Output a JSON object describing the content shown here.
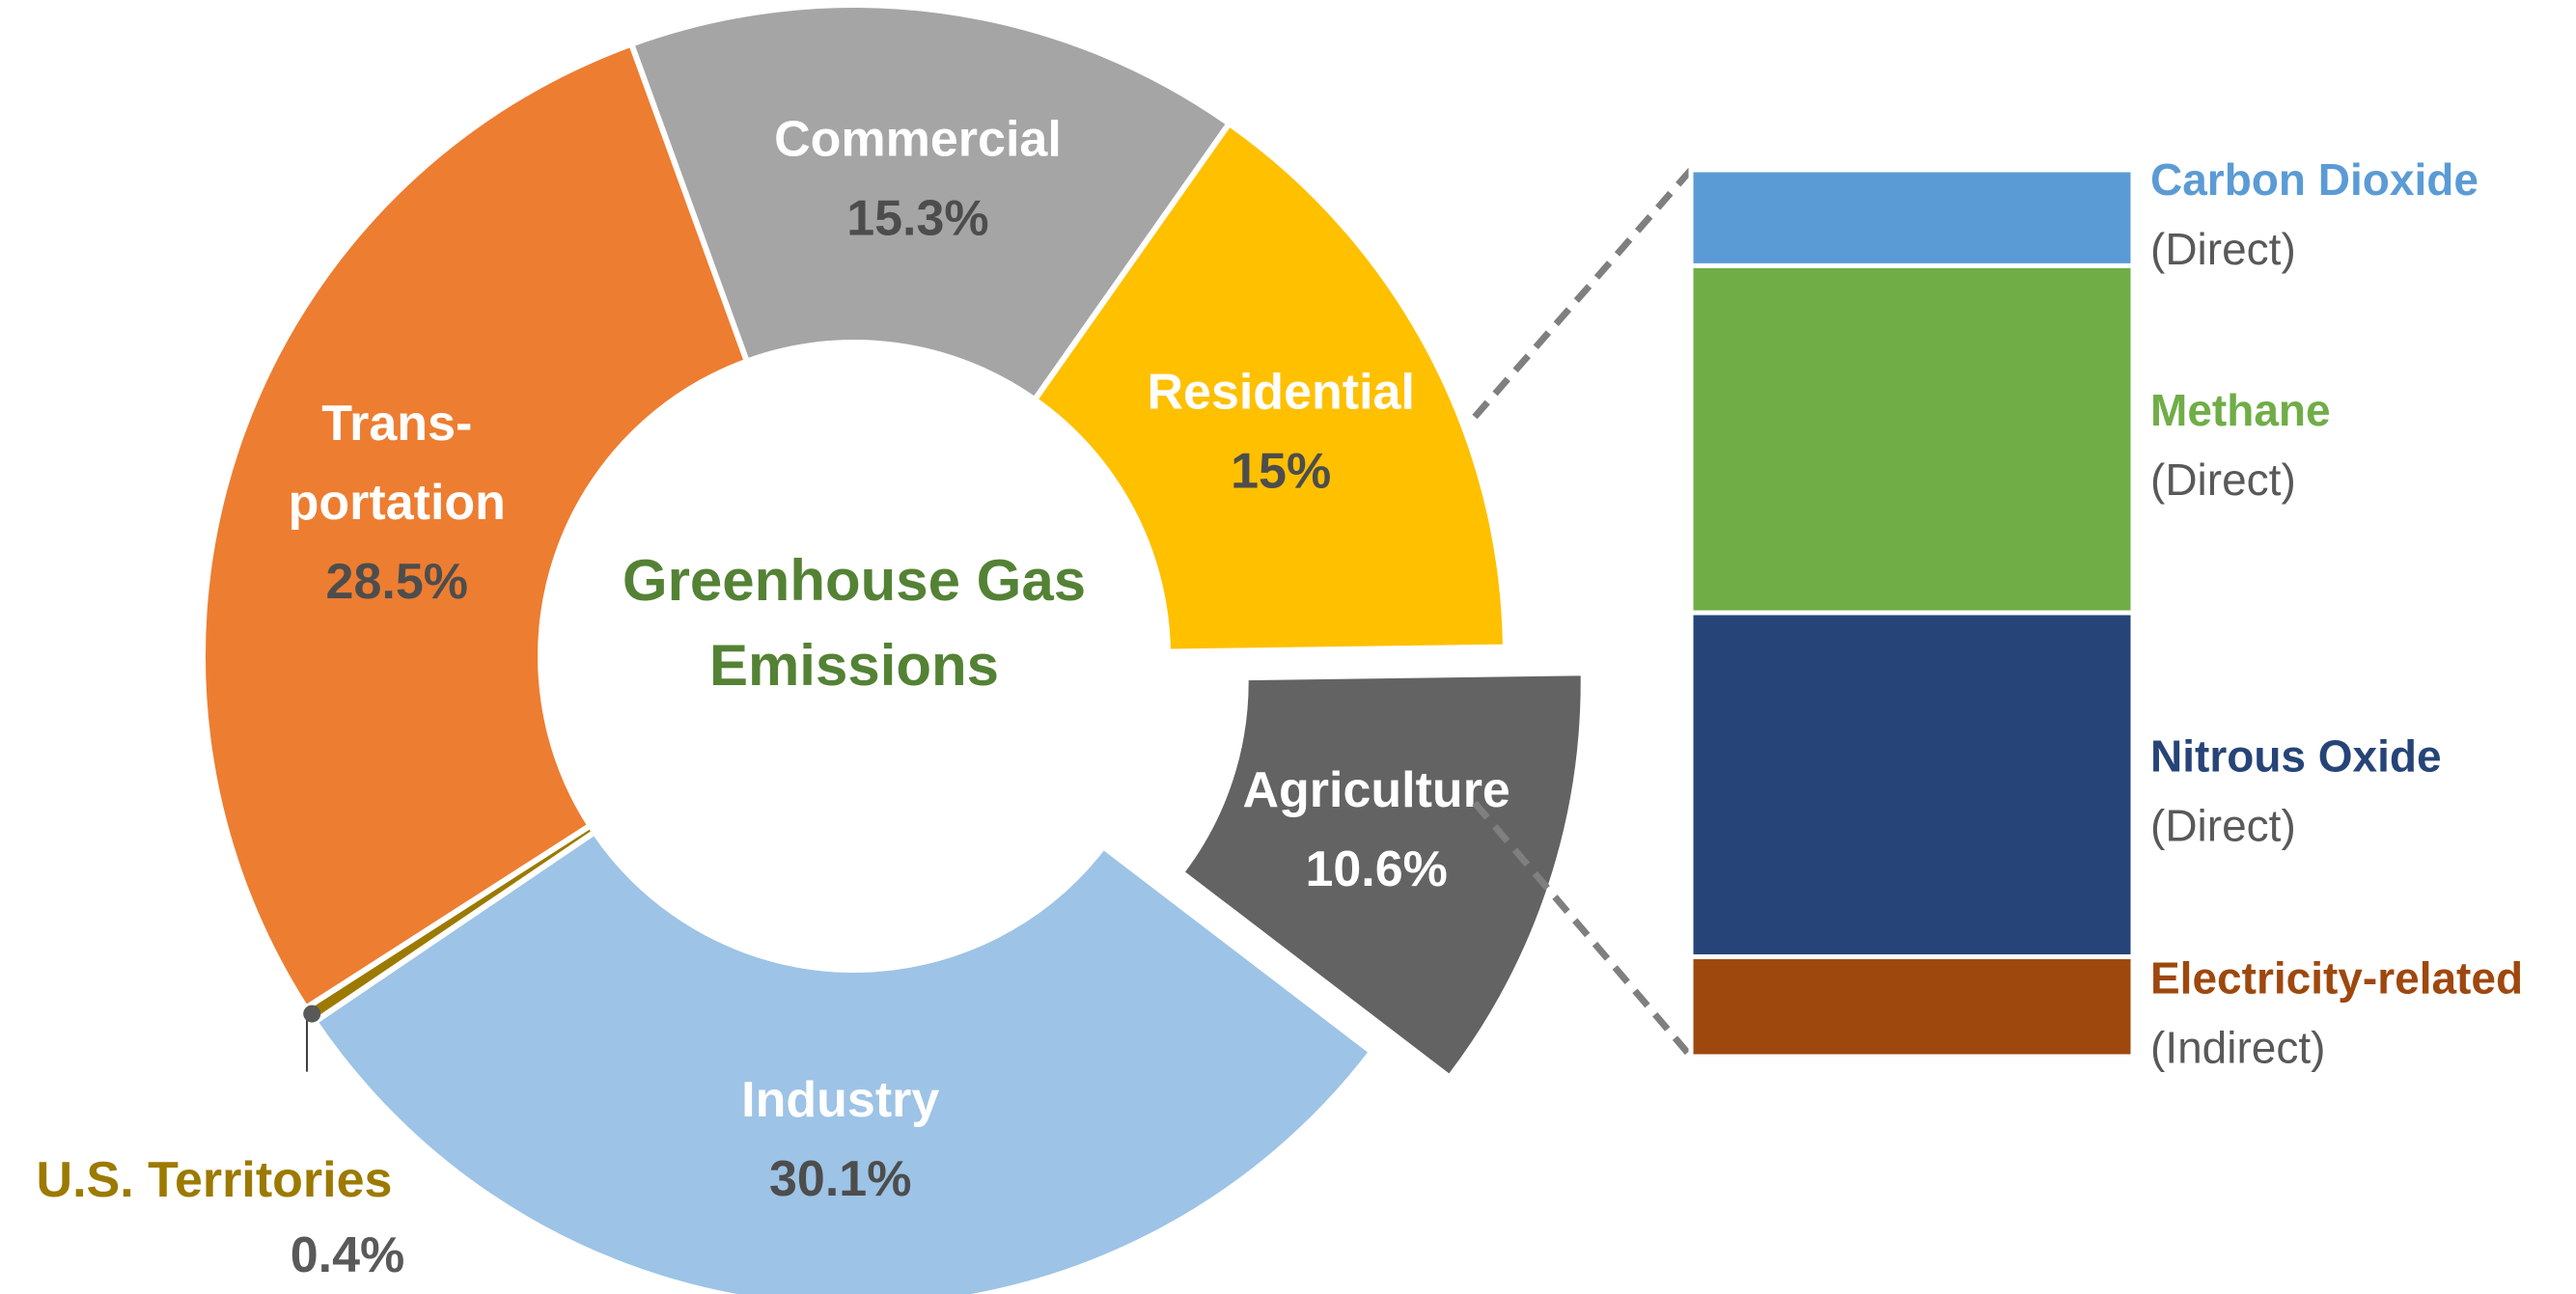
{
  "chart_data": [
    {
      "type": "pie",
      "variant": "donut",
      "center_label": [
        "Greenhouse Gas",
        "Emissions"
      ],
      "center_label_color": "#548235",
      "units": "%",
      "slices": [
        {
          "name": "Agriculture",
          "label_lines": [
            "Agriculture"
          ],
          "value": 10.6,
          "value_label": "10.6%",
          "color": "#636363",
          "label_color": "#ffffff",
          "value_color": "#ffffff",
          "exploded": true
        },
        {
          "name": "Industry",
          "label_lines": [
            "Industry"
          ],
          "value": 30.1,
          "value_label": "30.1%",
          "color": "#9dc3e6",
          "label_color": "#ffffff",
          "value_color": "#4d4d4d"
        },
        {
          "name": "U.S. Territories",
          "label_lines": [
            "U.S. Territories"
          ],
          "value": 0.4,
          "value_label": "0.4%",
          "color": "#9c7a00",
          "label_color": "#9c7a00",
          "value_color": "#595959",
          "external_label": true
        },
        {
          "name": "Transportation",
          "label_lines": [
            "Trans-",
            "portation"
          ],
          "value": 28.5,
          "value_label": "28.5%",
          "color": "#ed7d31",
          "label_color": "#ffffff",
          "value_color": "#4d4d4d"
        },
        {
          "name": "Commercial",
          "label_lines": [
            "Commercial"
          ],
          "value": 15.3,
          "value_label": "15.3%",
          "color": "#a5a5a5",
          "label_color": "#ffffff",
          "value_color": "#4d4d4d"
        },
        {
          "name": "Residential",
          "label_lines": [
            "Residential"
          ],
          "value": 15,
          "value_label": "15%",
          "color": "#ffc000",
          "label_color": "#ffffff",
          "value_color": "#4d4d4d"
        }
      ]
    },
    {
      "type": "bar",
      "variant": "stacked-breakdown",
      "breakdown_of": "Agriculture",
      "segments": [
        {
          "name": "Carbon  Dioxide",
          "sub": "(Direct)",
          "share": 0.099,
          "color": "#5b9bd5",
          "label_color": "#5b9bd5"
        },
        {
          "name": "Methane",
          "sub": "(Direct)",
          "share": 0.358,
          "color": "#70ad47",
          "label_color": "#70ad47"
        },
        {
          "name": "Nitrous  Oxide",
          "sub": "(Direct)",
          "share": 0.355,
          "color": "#264478",
          "label_color": "#264478"
        },
        {
          "name": "Electricity-related",
          "sub": "(Indirect)",
          "share": 0.103,
          "color": "#9e480e",
          "label_color": "#9e480e"
        }
      ]
    }
  ],
  "colors": {
    "connector": "#7f7f7f",
    "sub_label": "#595959",
    "leader": "#404040"
  }
}
